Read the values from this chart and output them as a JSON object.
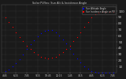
{
  "title": "Solar PV/Inverter Performance Sun Altitude & Sun Incidence",
  "bg_color": "#1a1a1a",
  "plot_bg": "#1a1a1a",
  "grid_color": "#555555",
  "text_color": "#cccccc",
  "blue_color": "#0000ff",
  "red_color": "#ff0000",
  "legend_blue": "Sun Altitude Angle",
  "legend_red": "Sun Incidence Angle on PV",
  "ylim": [
    0,
    110
  ],
  "xlim": [
    0,
    32
  ],
  "yticks": [
    10,
    20,
    30,
    40,
    50,
    60,
    70,
    80,
    90,
    100
  ],
  "x_tick_pos": [
    1,
    4,
    7,
    10,
    13,
    16,
    19,
    22,
    25,
    28,
    31
  ],
  "x_labels": [
    "4:45",
    "6:15",
    "7:45",
    "9:15",
    "10:45",
    "12:15",
    "1:45",
    "3:15",
    "4:45",
    "6:15",
    "7:45"
  ],
  "blue_x": [
    1,
    2,
    3,
    4,
    5,
    6,
    7,
    8,
    9,
    10,
    11,
    12,
    13,
    14,
    15,
    16,
    17,
    18,
    19,
    20,
    21,
    22,
    23,
    24,
    25,
    26,
    27,
    28,
    29,
    30,
    31
  ],
  "blue_y": [
    2,
    5,
    10,
    15,
    22,
    30,
    38,
    46,
    53,
    59,
    64,
    68,
    70,
    69,
    65,
    60,
    54,
    47,
    39,
    31,
    23,
    16,
    10,
    6,
    3,
    1,
    0,
    0,
    0,
    0,
    0
  ],
  "red_x": [
    1,
    2,
    3,
    4,
    5,
    6,
    7,
    8,
    9,
    10,
    11,
    12,
    13,
    14,
    15,
    16,
    17,
    18,
    19,
    20,
    21,
    22,
    23,
    24,
    25,
    26,
    27,
    28,
    29,
    30,
    31
  ],
  "red_y": [
    90,
    82,
    74,
    66,
    58,
    51,
    44,
    38,
    33,
    29,
    26,
    24,
    23,
    24,
    26,
    29,
    33,
    38,
    44,
    51,
    58,
    66,
    74,
    82,
    90,
    95,
    98,
    99,
    99,
    99,
    99
  ]
}
